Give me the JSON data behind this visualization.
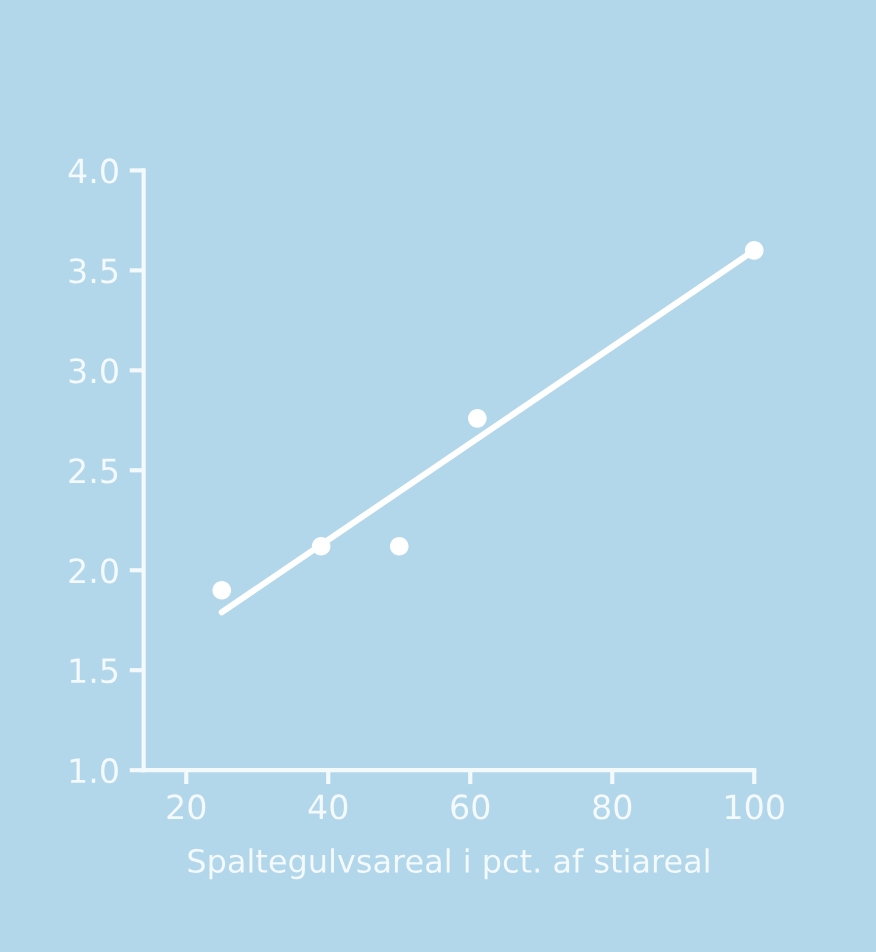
{
  "chart_data": {
    "type": "scatter",
    "xlabel": "Spaltegulvsareal i pct. af stiareal",
    "x": [
      25,
      39,
      50,
      61,
      100
    ],
    "series": [
      {
        "color": "#ffffff",
        "values": [
          1.9,
          2.12,
          2.12,
          2.76,
          3.6
        ],
        "marker": "circle"
      },
      {
        "type": "line",
        "color": "#ffffff",
        "x": [
          25,
          100
        ],
        "values": [
          1.79,
          3.6
        ],
        "line_style": "solid"
      }
    ],
    "xlim": [
      14,
      100
    ],
    "xticks": [
      20,
      40,
      60,
      80,
      100
    ],
    "ylim": [
      1.0,
      4.0
    ],
    "yticks": [
      {
        "value": 1.0,
        "label": "1.0"
      },
      {
        "value": 1.5,
        "label": "1.5"
      },
      {
        "value": 2.0,
        "label": "2.0"
      },
      {
        "value": 2.5,
        "label": "2.5"
      },
      {
        "value": 3.0,
        "label": "3.0"
      },
      {
        "value": 3.5,
        "label": "3.5"
      },
      {
        "value": 4.0,
        "label": "4.0"
      }
    ],
    "grid": false,
    "legend": false
  }
}
